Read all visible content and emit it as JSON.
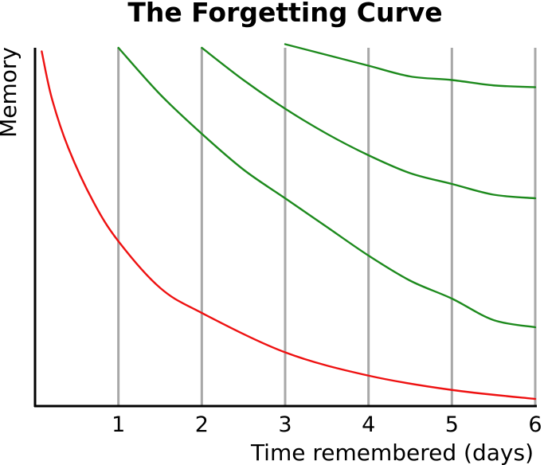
{
  "chart_data": {
    "type": "line",
    "title": "The Forgetting Curve",
    "xlabel": "Time remembered (days)",
    "ylabel": "Memory",
    "xlim": [
      0,
      6
    ],
    "ylim": [
      0,
      1
    ],
    "x_ticks": [
      1,
      2,
      3,
      4,
      5,
      6
    ],
    "grid": "vertical",
    "colors": {
      "original": "#ee1111",
      "review": "#1d8a1d",
      "grid": "#a8a8a8",
      "axis": "#000000"
    },
    "series": [
      {
        "x": [
          0.08,
          0.2,
          0.4,
          0.7,
          1.0,
          1.5,
          2.0,
          3.0,
          4.0,
          5.0,
          6.0
        ],
        "y": [
          0.99,
          0.86,
          0.72,
          0.57,
          0.46,
          0.33,
          0.26,
          0.15,
          0.085,
          0.045,
          0.02
        ]
      },
      {
        "x": [
          1.0,
          1.5,
          2.0,
          2.5,
          3.0,
          3.5,
          4.0,
          4.5,
          5.0,
          5.5,
          6.0
        ],
        "y": [
          1.0,
          0.87,
          0.76,
          0.66,
          0.58,
          0.5,
          0.42,
          0.35,
          0.3,
          0.24,
          0.22
        ]
      },
      {
        "x": [
          2.0,
          2.5,
          3.0,
          3.5,
          4.0,
          4.5,
          5.0,
          5.5,
          6.0
        ],
        "y": [
          1.0,
          0.91,
          0.83,
          0.76,
          0.7,
          0.65,
          0.62,
          0.59,
          0.58
        ]
      },
      {
        "x": [
          3.0,
          3.5,
          4.0,
          4.5,
          5.0,
          5.5,
          6.0
        ],
        "y": [
          1.01,
          0.98,
          0.95,
          0.92,
          0.91,
          0.895,
          0.89
        ]
      }
    ]
  }
}
